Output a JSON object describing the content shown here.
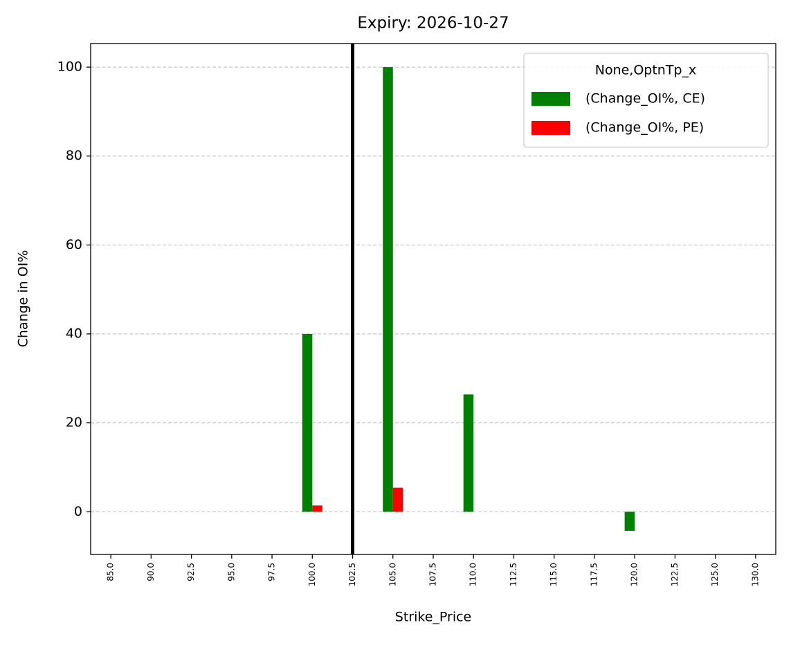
{
  "chart_data": {
    "type": "bar",
    "title": "Expiry: 2026-10-27",
    "x_label": "Strike_Price",
    "y_label": "Change in OI%",
    "categories": [
      "85.0",
      "90.0",
      "92.5",
      "95.0",
      "97.5",
      "100.0",
      "102.5",
      "105.0",
      "107.5",
      "110.0",
      "112.5",
      "115.0",
      "117.5",
      "120.0",
      "122.5",
      "125.0",
      "130.0"
    ],
    "series": [
      {
        "name": "(Change_OI%, CE)",
        "color": "#008000",
        "values": [
          null,
          null,
          null,
          null,
          null,
          40,
          null,
          100,
          null,
          26.4,
          null,
          null,
          null,
          -4.3,
          null,
          null,
          null
        ]
      },
      {
        "name": "(Change_OI%, PE)",
        "color": "#ff0000",
        "values": [
          null,
          null,
          null,
          null,
          null,
          1.4,
          null,
          5.4,
          null,
          null,
          null,
          null,
          null,
          null,
          null,
          null,
          null
        ]
      }
    ],
    "legend_title": "None,OptnTp_x",
    "legend_position": "upper-right",
    "vline_at": "102.5",
    "ylim": [
      -9.6,
      105.3
    ],
    "yticks": [
      0,
      20,
      40,
      60,
      80,
      100
    ],
    "grid": true
  }
}
